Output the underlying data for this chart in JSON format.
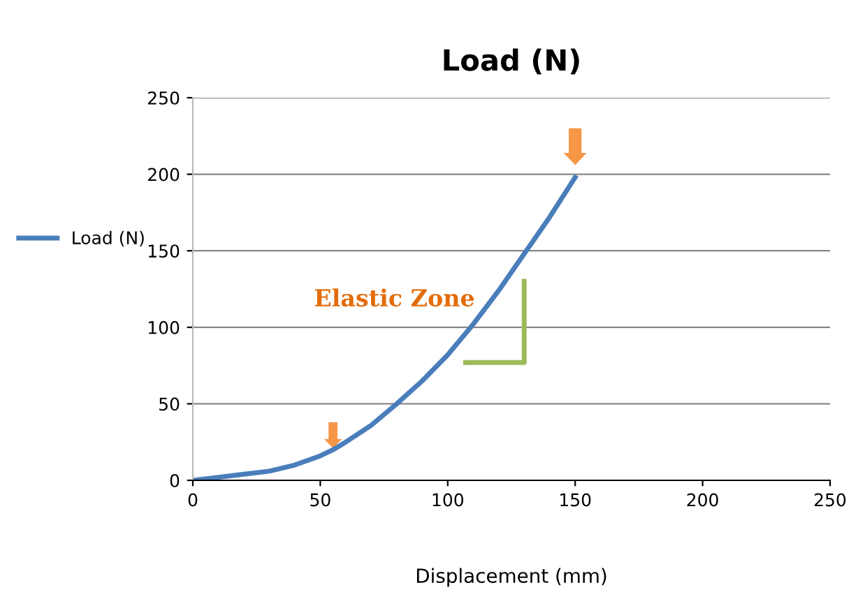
{
  "chart_data": {
    "type": "line",
    "title": "Load (N)",
    "xlabel": "Displacement (mm)",
    "series": [
      {
        "name": "Load (N)",
        "color": "#4a7ebb",
        "x": [
          0,
          10,
          20,
          30,
          40,
          50,
          55,
          60,
          70,
          80,
          90,
          100,
          110,
          120,
          130,
          140,
          150
        ],
        "values": [
          0,
          2,
          4,
          6,
          10,
          16,
          20,
          25,
          36,
          50,
          65,
          82,
          102,
          124,
          148,
          172,
          198
        ]
      }
    ],
    "xlim": [
      0,
      250
    ],
    "xticks": [
      0,
      50,
      100,
      150,
      200,
      250
    ],
    "ylim": [
      0,
      250
    ],
    "yticks": [
      0,
      50,
      100,
      150,
      200,
      250
    ],
    "grid": "y",
    "legend": "left",
    "marker": "none",
    "line_style": "solid",
    "annotations": [
      "Elastic Zone"
    ]
  }
}
